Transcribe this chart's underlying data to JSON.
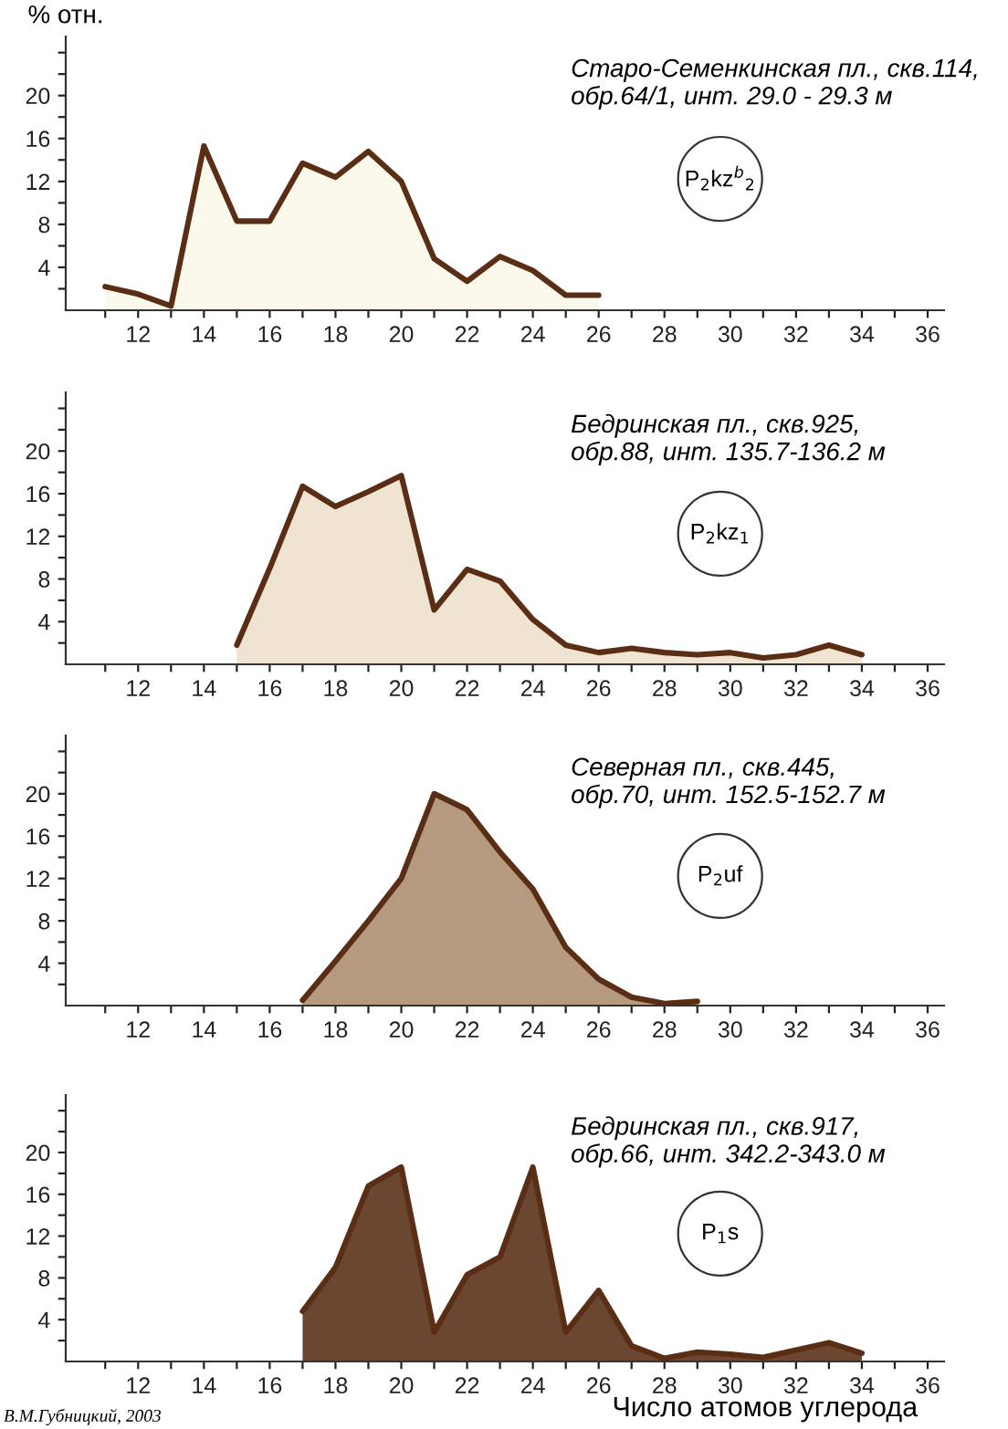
{
  "chart_data": [
    {
      "type": "area",
      "ylabel": "% отн.",
      "x": [
        11,
        12,
        13,
        14,
        15,
        16,
        17,
        18,
        19,
        20,
        21,
        22,
        23,
        24,
        25,
        26
      ],
      "values": [
        2.2,
        1.5,
        0.4,
        15.3,
        8.3,
        8.3,
        13.7,
        12.4,
        14.8,
        12,
        4.8,
        2.7,
        5,
        3.7,
        1.4,
        1.4
      ],
      "color": "#fbf9ec",
      "xlim": [
        9.8,
        36.5
      ],
      "ylim": [
        0,
        25.5
      ],
      "xticks": [
        {
          "value": 11,
          "label": null
        },
        12,
        {
          "value": 13,
          "label": null
        },
        14,
        {
          "value": 15,
          "label": null
        },
        16,
        {
          "value": 17,
          "label": null
        },
        18,
        {
          "value": 19,
          "label": null
        },
        20,
        {
          "value": 21,
          "label": null
        },
        22,
        {
          "value": 23,
          "label": null
        },
        24,
        {
          "value": 25,
          "label": null
        },
        26,
        {
          "value": 27,
          "label": null
        },
        28,
        {
          "value": 29,
          "label": null
        },
        30,
        {
          "value": 31,
          "label": null
        },
        32,
        {
          "value": 33,
          "label": null
        },
        34,
        {
          "value": 35,
          "label": null
        },
        36
      ],
      "yticks": [
        {
          "value": 2,
          "label": null
        },
        4,
        {
          "value": 6,
          "label": null
        },
        8,
        {
          "value": 10,
          "label": null
        },
        12,
        {
          "value": 14,
          "label": null
        },
        16,
        {
          "value": 18,
          "label": null
        },
        20,
        {
          "value": 22,
          "label": null
        },
        {
          "value": 24,
          "label": null
        }
      ],
      "annotations": [
        "Старо-Семенкинская пл., скв.114,\nобр.64/1, инт. 29.0 - 29.3 м",
        "P$_{2}$kz$^{b}$$_{2}$"
      ]
    },
    {
      "type": "area",
      "x": [
        15,
        16,
        17,
        18,
        19,
        20,
        21,
        22,
        23,
        24,
        25,
        26,
        27,
        28,
        29,
        30,
        31,
        32,
        33,
        34
      ],
      "values": [
        1.8,
        9,
        16.7,
        14.8,
        16.2,
        17.7,
        5.1,
        8.9,
        7.8,
        4.2,
        1.8,
        1.1,
        1.5,
        1.1,
        0.9,
        1.1,
        0.6,
        0.9,
        1.8,
        0.9
      ],
      "color": "#efe3d1",
      "xlim": [
        9.8,
        36.5
      ],
      "ylim": [
        0,
        25.5
      ],
      "xticks": [
        {
          "value": 11,
          "label": null
        },
        12,
        {
          "value": 13,
          "label": null
        },
        14,
        {
          "value": 15,
          "label": null
        },
        16,
        {
          "value": 17,
          "label": null
        },
        18,
        {
          "value": 19,
          "label": null
        },
        20,
        {
          "value": 21,
          "label": null
        },
        22,
        {
          "value": 23,
          "label": null
        },
        24,
        {
          "value": 25,
          "label": null
        },
        26,
        {
          "value": 27,
          "label": null
        },
        28,
        {
          "value": 29,
          "label": null
        },
        30,
        {
          "value": 31,
          "label": null
        },
        32,
        {
          "value": 33,
          "label": null
        },
        34,
        {
          "value": 35,
          "label": null
        },
        36
      ],
      "yticks": [
        {
          "value": 2,
          "label": null
        },
        4,
        {
          "value": 6,
          "label": null
        },
        8,
        {
          "value": 10,
          "label": null
        },
        12,
        {
          "value": 14,
          "label": null
        },
        16,
        {
          "value": 18,
          "label": null
        },
        20,
        {
          "value": 22,
          "label": null
        },
        {
          "value": 24,
          "label": null
        }
      ],
      "annotations": [
        "Бедринская пл., скв.925,\nобр.88, инт. 135.7-136.2 м",
        "P$_{2}$kz$_{1}$"
      ]
    },
    {
      "type": "area",
      "x": [
        17,
        18,
        19,
        20,
        21,
        22,
        23,
        24,
        25,
        26,
        27,
        28,
        29
      ],
      "values": [
        0.5,
        4.2,
        8,
        12,
        20,
        18.5,
        14.5,
        11,
        5.5,
        2.5,
        0.8,
        0.2,
        0.4
      ],
      "color": "#b59a80",
      "xlim": [
        9.8,
        36.5
      ],
      "ylim": [
        0,
        25.5
      ],
      "xticks": [
        {
          "value": 11,
          "label": null
        },
        12,
        {
          "value": 13,
          "label": null
        },
        14,
        {
          "value": 15,
          "label": null
        },
        16,
        {
          "value": 17,
          "label": null
        },
        18,
        {
          "value": 19,
          "label": null
        },
        20,
        {
          "value": 21,
          "label": null
        },
        22,
        {
          "value": 23,
          "label": null
        },
        24,
        {
          "value": 25,
          "label": null
        },
        26,
        {
          "value": 27,
          "label": null
        },
        28,
        {
          "value": 29,
          "label": null
        },
        30,
        {
          "value": 31,
          "label": null
        },
        32,
        {
          "value": 33,
          "label": null
        },
        34,
        {
          "value": 35,
          "label": null
        },
        36
      ],
      "yticks": [
        {
          "value": 2,
          "label": null
        },
        4,
        {
          "value": 6,
          "label": null
        },
        8,
        {
          "value": 10,
          "label": null
        },
        12,
        {
          "value": 14,
          "label": null
        },
        16,
        {
          "value": 18,
          "label": null
        },
        20,
        {
          "value": 22,
          "label": null
        },
        {
          "value": 24,
          "label": null
        }
      ],
      "annotations": [
        "Северная пл., скв.445,\nобр.70, инт. 152.5-152.7 м",
        "P$_{2}$uf"
      ]
    },
    {
      "type": "area",
      "xlabel": "Число атомов углерода",
      "x": [
        17,
        18,
        19,
        20,
        21,
        22,
        23,
        24,
        25,
        26,
        27,
        28,
        29,
        30,
        31,
        32,
        33,
        34
      ],
      "values": [
        4.8,
        9,
        16.8,
        18.6,
        2.8,
        8.3,
        10,
        18.6,
        2.8,
        6.8,
        1.5,
        0.3,
        0.9,
        0.7,
        0.4,
        1.1,
        1.8,
        0.8
      ],
      "color": "#6b4630",
      "xlim": [
        9.8,
        36.5
      ],
      "ylim": [
        0,
        25.5
      ],
      "xticks": [
        {
          "value": 11,
          "label": null
        },
        12,
        {
          "value": 13,
          "label": null
        },
        14,
        {
          "value": 15,
          "label": null
        },
        16,
        {
          "value": 17,
          "label": null
        },
        18,
        {
          "value": 19,
          "label": null
        },
        20,
        {
          "value": 21,
          "label": null
        },
        22,
        {
          "value": 23,
          "label": null
        },
        24,
        {
          "value": 25,
          "label": null
        },
        26,
        {
          "value": 27,
          "label": null
        },
        28,
        {
          "value": 29,
          "label": null
        },
        30,
        {
          "value": 31,
          "label": null
        },
        32,
        {
          "value": 33,
          "label": null
        },
        34,
        {
          "value": 35,
          "label": null
        },
        36
      ],
      "yticks": [
        {
          "value": 2,
          "label": null
        },
        4,
        {
          "value": 6,
          "label": null
        },
        8,
        {
          "value": 10,
          "label": null
        },
        12,
        {
          "value": 14,
          "label": null
        },
        16,
        {
          "value": 18,
          "label": null
        },
        20,
        {
          "value": 22,
          "label": null
        },
        {
          "value": 24,
          "label": null
        }
      ],
      "annotations": [
        "Бедринская пл., скв.917,\nобр.66, инт. 342.2-343.0 м",
        "P$_{1}$s",
        "В.М.Губницкий, 2003"
      ]
    }
  ]
}
